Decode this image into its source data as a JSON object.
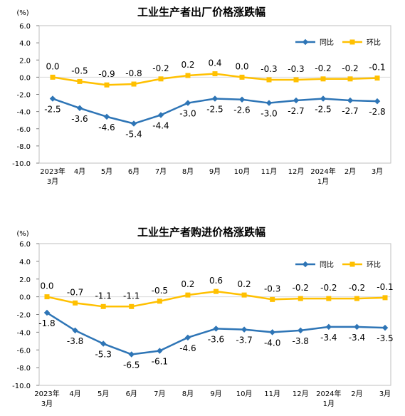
{
  "chart_data": [
    {
      "type": "line",
      "title": "工业生产者出厂价格涨跌幅",
      "unit_label": "(%)",
      "categories": [
        [
          "2023年",
          "3月"
        ],
        [
          "4月"
        ],
        [
          "5月"
        ],
        [
          "6月"
        ],
        [
          "7月"
        ],
        [
          "8月"
        ],
        [
          "9月"
        ],
        [
          "10月"
        ],
        [
          "11月"
        ],
        [
          "12月"
        ],
        [
          "2024年",
          "1月"
        ],
        [
          "2月"
        ],
        [
          "3月"
        ]
      ],
      "y_ticks": [
        "6.0",
        "4.0",
        "2.0",
        "0.0",
        "-2.0",
        "-4.0",
        "-6.0",
        "-8.0",
        "-10.0"
      ],
      "ylim": [
        -10,
        6
      ],
      "legend_position": "top-right",
      "series": [
        {
          "name": "同比",
          "color": "#2E75B6",
          "values": [
            -2.5,
            -3.6,
            -4.6,
            -5.4,
            -4.4,
            -3.0,
            -2.5,
            -2.6,
            -3.0,
            -2.7,
            -2.5,
            -2.7,
            -2.8
          ],
          "labels": [
            "-2.5",
            "-3.6",
            "-4.6",
            "-5.4",
            "-4.4",
            "-3.0",
            "-2.5",
            "-2.6",
            "-3.0",
            "-2.7",
            "-2.5",
            "-2.7",
            "-2.8"
          ]
        },
        {
          "name": "环比",
          "color": "#FFC000",
          "values": [
            0.0,
            -0.5,
            -0.9,
            -0.8,
            -0.2,
            0.2,
            0.4,
            0.0,
            -0.3,
            -0.3,
            -0.2,
            -0.2,
            -0.1
          ],
          "labels": [
            "0.0",
            "-0.5",
            "-0.9",
            "-0.8",
            "-0.2",
            "0.2",
            "0.4",
            "0.0",
            "-0.3",
            "-0.3",
            "-0.2",
            "-0.2",
            "-0.1"
          ]
        }
      ]
    },
    {
      "type": "line",
      "title": "工业生产者购进价格涨跌幅",
      "unit_label": "(%)",
      "categories": [
        [
          "2023年",
          "3月"
        ],
        [
          "4月"
        ],
        [
          "5月"
        ],
        [
          "6月"
        ],
        [
          "7月"
        ],
        [
          "8月"
        ],
        [
          "9月"
        ],
        [
          "10月"
        ],
        [
          "11月"
        ],
        [
          "12月"
        ],
        [
          "2024年",
          "1月"
        ],
        [
          "2月"
        ],
        [
          "3月"
        ]
      ],
      "y_ticks": [
        "6.0",
        "4.0",
        "2.0",
        "0.0",
        "-2.0",
        "-4.0",
        "-6.0",
        "-8.0",
        "-10.0"
      ],
      "ylim": [
        -10,
        6
      ],
      "legend_position": "top-right",
      "series": [
        {
          "name": "同比",
          "color": "#2E75B6",
          "values": [
            -1.8,
            -3.8,
            -5.3,
            -6.5,
            -6.1,
            -4.6,
            -3.6,
            -3.7,
            -4.0,
            -3.8,
            -3.4,
            -3.4,
            -3.5
          ],
          "labels": [
            "-1.8",
            "-3.8",
            "-5.3",
            "-6.5",
            "-6.1",
            "-4.6",
            "-3.6",
            "-3.7",
            "-4.0",
            "-3.8",
            "-3.4",
            "-3.4",
            "-3.5"
          ]
        },
        {
          "name": "环比",
          "color": "#FFC000",
          "values": [
            0.0,
            -0.7,
            -1.1,
            -1.1,
            -0.5,
            0.2,
            0.6,
            0.2,
            -0.3,
            -0.2,
            -0.2,
            -0.2,
            -0.1
          ],
          "labels": [
            "0.0",
            "-0.7",
            "-1.1",
            "-1.1",
            "-0.5",
            "0.2",
            "0.6",
            "0.2",
            "-0.3",
            "-0.2",
            "-0.2",
            "-0.2",
            "-0.1"
          ]
        }
      ]
    }
  ]
}
